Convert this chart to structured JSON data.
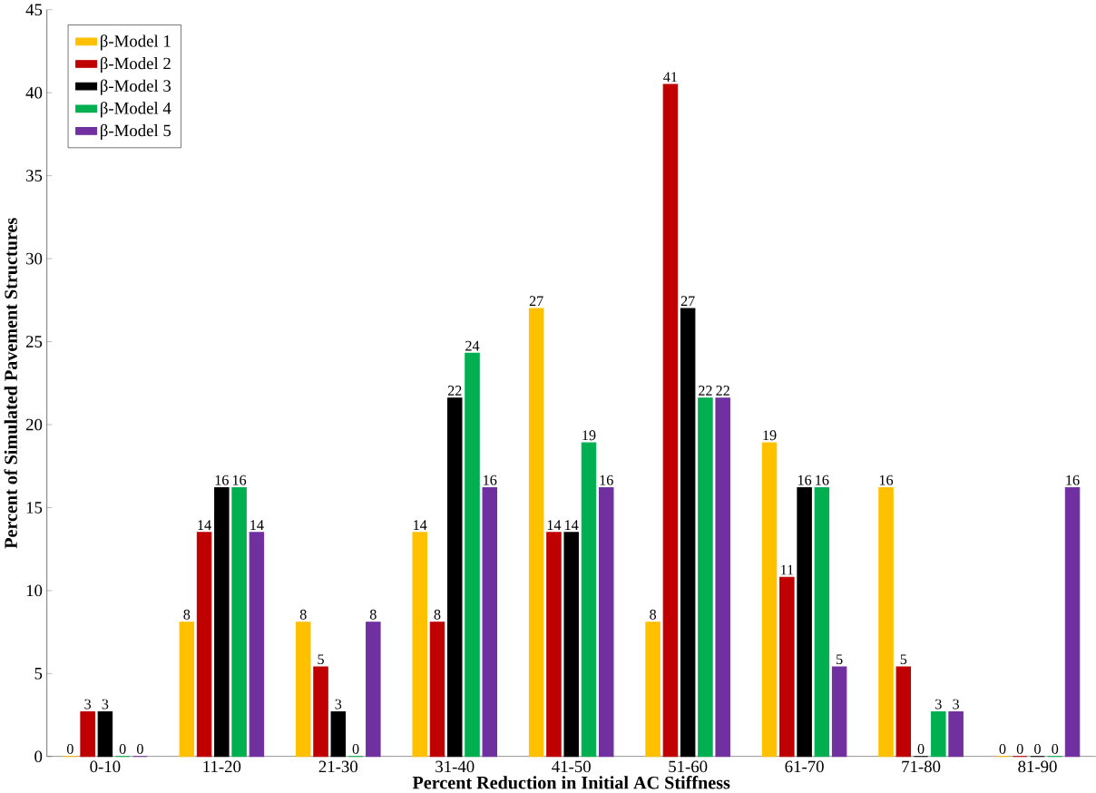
{
  "chart_data": {
    "type": "bar",
    "xlabel": "Percent Reduction in Initial AC Stiffness",
    "ylabel": "Percent of Simulated  Pavement Structures",
    "categories": [
      "0-10",
      "11-20",
      "21-30",
      "31-40",
      "41-50",
      "51-60",
      "61-70",
      "71-80",
      "81-90"
    ],
    "ylim": [
      0,
      45
    ],
    "yticks": [
      0,
      5,
      10,
      15,
      20,
      25,
      30,
      35,
      40,
      45
    ],
    "legend": "top left",
    "series": [
      {
        "name": "β-Model 1",
        "color": "#ffc000",
        "values": [
          0,
          8.1,
          8.1,
          13.5,
          27.0,
          8.1,
          18.9,
          16.2,
          0
        ],
        "value_labels": [
          "0",
          "8",
          "8",
          "14",
          "27",
          "8",
          "19",
          "16",
          "0"
        ]
      },
      {
        "name": "β-Model 2",
        "color": "#c00000",
        "values": [
          2.7,
          13.5,
          5.4,
          8.1,
          13.5,
          40.5,
          10.8,
          5.4,
          0
        ],
        "value_labels": [
          "3",
          "14",
          "5",
          "8",
          "14",
          "41",
          "11",
          "5",
          "0"
        ]
      },
      {
        "name": "β-Model 3",
        "color": "#000000",
        "values": [
          2.7,
          16.2,
          2.7,
          21.6,
          13.5,
          27.0,
          16.2,
          0,
          0
        ],
        "value_labels": [
          "3",
          "16",
          "3",
          "22",
          "14",
          "27",
          "16",
          "0",
          "0"
        ]
      },
      {
        "name": "β-Model 4",
        "color": "#00b050",
        "values": [
          0,
          16.2,
          0,
          24.3,
          18.9,
          21.6,
          16.2,
          2.7,
          0
        ],
        "value_labels": [
          "0",
          "16",
          "0",
          "24",
          "19",
          "22",
          "16",
          "3",
          "0"
        ]
      },
      {
        "name": "β-Model 5",
        "color": "#7030a0",
        "values": [
          0,
          13.5,
          8.1,
          16.2,
          16.2,
          21.6,
          5.4,
          2.7,
          16.2
        ],
        "value_labels": [
          "0",
          "14",
          "8",
          "16",
          "16",
          "22",
          "5",
          "3",
          "16"
        ]
      }
    ]
  }
}
